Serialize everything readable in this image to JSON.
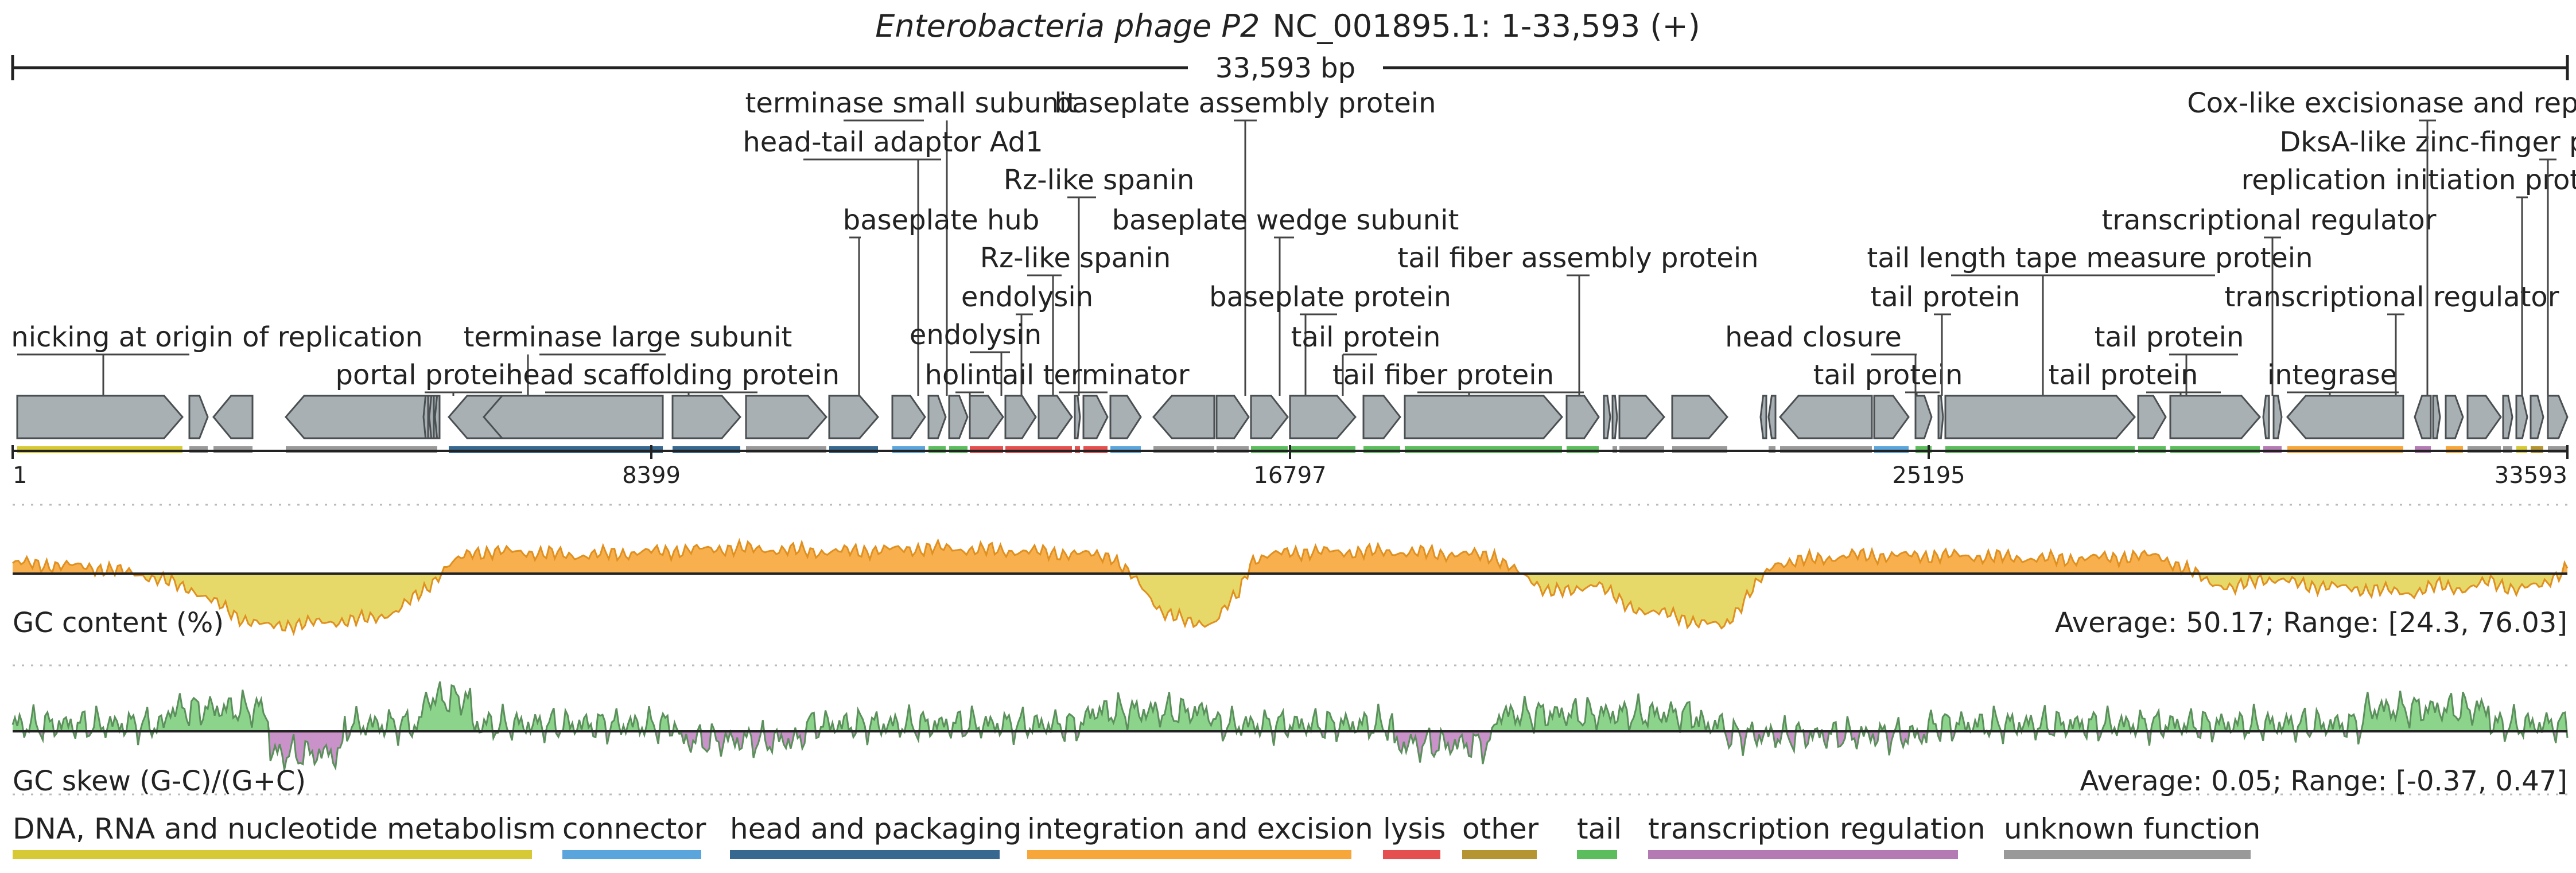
{
  "title": {
    "organism": "Enterobacteria phage P2",
    "accession": "NC_001895.1: 1-33,593 (+)"
  },
  "scale_bar_label": "33,593 bp",
  "genome_length": 33593,
  "ruler_ticks": [
    "1",
    "8399",
    "16797",
    "25195",
    "33593"
  ],
  "gene_labels": [
    "nicking at origin of replication",
    "portal protein",
    "terminase large subunit",
    "head scaffolding protein",
    "terminase small subunit",
    "head-tail adaptor Ad1",
    "baseplate hub",
    "Rz-like spanin",
    "Rz-like spanin",
    "endolysin",
    "endolysin",
    "holin",
    "tail terminator",
    "baseplate assembly protein",
    "baseplate wedge subunit",
    "baseplate protein",
    "tail protein",
    "tail fiber protein",
    "tail fiber assembly protein",
    "head closure",
    "tail protein",
    "tail length tape measure protein",
    "tail protein",
    "tail protein",
    "tail protein",
    "transcriptional regulator",
    "integrase",
    "transcriptional regulator",
    "replication initiation protein",
    "DksA-like zinc-finger protein",
    "Cox-like excisionase and repressor"
  ],
  "gc_content": {
    "label": "GC content (%)",
    "stats": "Average: 50.17; Range: [24.3, 76.03]",
    "average": 50.17,
    "range": [
      24.3,
      76.03
    ],
    "profile": [
      [
        0,
        53
      ],
      [
        3,
        52
      ],
      [
        5,
        50
      ],
      [
        7,
        46
      ],
      [
        8,
        42
      ],
      [
        9,
        38
      ],
      [
        10,
        36
      ],
      [
        12,
        37
      ],
      [
        14,
        38
      ],
      [
        15,
        40
      ],
      [
        16,
        45
      ],
      [
        17,
        52
      ],
      [
        18,
        56
      ],
      [
        20,
        56
      ],
      [
        22,
        55
      ],
      [
        25,
        56
      ],
      [
        28,
        57
      ],
      [
        32,
        56
      ],
      [
        36,
        57
      ],
      [
        40,
        56
      ],
      [
        43,
        55
      ],
      [
        44,
        48
      ],
      [
        45,
        40
      ],
      [
        46,
        37
      ],
      [
        47,
        37
      ],
      [
        48,
        45
      ],
      [
        48.5,
        54
      ],
      [
        50,
        56
      ],
      [
        54,
        56
      ],
      [
        58,
        55
      ],
      [
        59,
        50
      ],
      [
        60,
        46
      ],
      [
        61,
        45
      ],
      [
        62,
        48
      ],
      [
        63,
        42
      ],
      [
        64,
        40
      ],
      [
        65,
        39
      ],
      [
        66,
        37
      ],
      [
        67,
        36
      ],
      [
        68,
        45
      ],
      [
        69,
        53
      ],
      [
        72,
        55
      ],
      [
        76,
        55
      ],
      [
        80,
        54
      ],
      [
        84,
        55
      ],
      [
        86,
        48
      ],
      [
        87,
        46
      ],
      [
        88,
        49
      ],
      [
        90,
        47
      ],
      [
        92,
        46
      ],
      [
        94,
        45
      ],
      [
        95,
        47
      ],
      [
        96,
        46
      ],
      [
        97,
        48
      ],
      [
        98,
        46
      ],
      [
        99,
        47
      ],
      [
        100,
        52
      ]
    ],
    "colors": {
      "above": "#f7b04d",
      "below": "#e6d96a",
      "line_above": "#ef8c1c",
      "line_below": "#c9b83a"
    }
  },
  "gc_skew": {
    "label": "GC skew (G-C)/(G+C)",
    "stats": "Average: 0.05; Range: [-0.37, 0.47]",
    "average": 0.05,
    "range": [
      -0.37,
      0.47
    ],
    "colors": {
      "pos": "#8cd38c",
      "neg": "#c992c9",
      "line_pos": "#3aa63a",
      "line_neg": "#9b4f9b"
    }
  },
  "legend": [
    {
      "label": "DNA, RNA and nucleotide metabolism",
      "color": "#d6c935"
    },
    {
      "label": "connector",
      "color": "#5aa5db"
    },
    {
      "label": "head and packaging",
      "color": "#37688f"
    },
    {
      "label": "integration and excision",
      "color": "#f7a63a"
    },
    {
      "label": "lysis",
      "color": "#e64f4f"
    },
    {
      "label": "other",
      "color": "#b59531"
    },
    {
      "label": "tail",
      "color": "#5bbd5b"
    },
    {
      "label": "transcription regulation",
      "color": "#b47ab4"
    },
    {
      "label": "unknown function",
      "color": "#999999"
    }
  ]
}
